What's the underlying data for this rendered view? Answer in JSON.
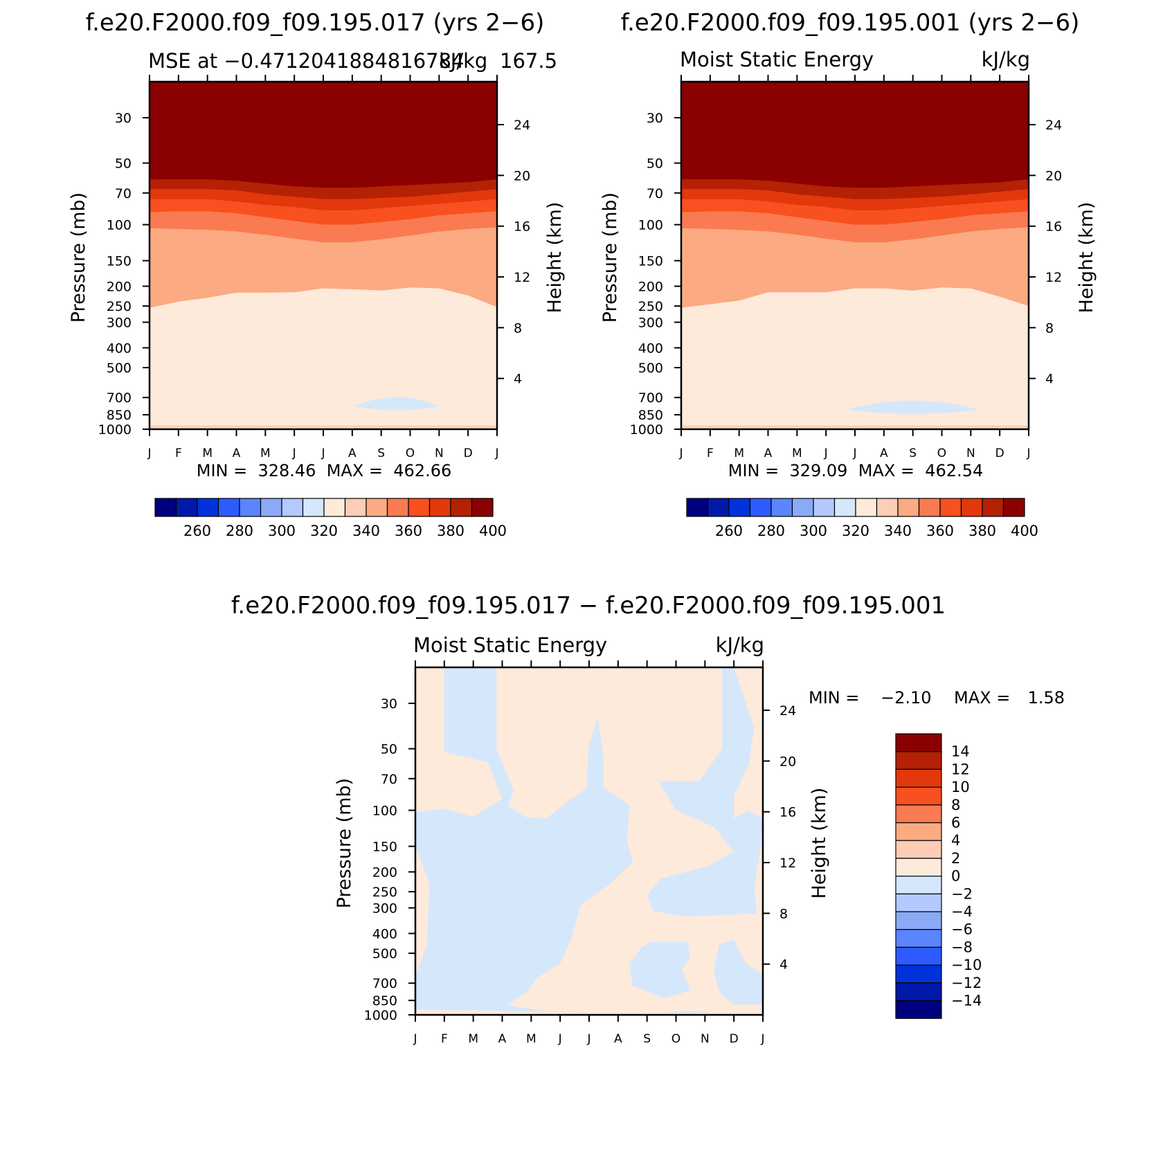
{
  "figure": {
    "panel_a_title": "f.e20.F2000.f09_f09.195.017 (yrs 2−6)",
    "panel_b_title": "f.e20.F2000.f09_f09.195.001 (yrs 2−6)",
    "panel_c_title": "f.e20.F2000.f09_f09.195.017 − f.e20.F2000.f09_f09.195.001"
  },
  "chart_data": [
    {
      "id": "a",
      "type": "heatmap",
      "description_kind": "contour (month vs pressure)",
      "title_left": "MSE at −0.4712041884816784",
      "title_right": "kJ/kg",
      "title_right_extra": "167.5",
      "ylabel": "Pressure (mb)",
      "ylabel_right": "Height (km)",
      "x_ticks": [
        "J",
        "F",
        "M",
        "A",
        "M",
        "J",
        "J",
        "A",
        "S",
        "O",
        "N",
        "D",
        "J"
      ],
      "y_ticks": [
        30,
        50,
        70,
        100,
        150,
        200,
        250,
        300,
        400,
        500,
        700,
        850,
        1000
      ],
      "y_ticks_right": [
        24,
        20,
        16,
        12,
        8,
        4
      ],
      "y_scale": "log",
      "ylim": [
        1000,
        20
      ],
      "stats": "MIN =  328.46  MAX =  462.66",
      "colorbar_labels": [
        "260",
        "280",
        "300",
        "320",
        "340",
        "360",
        "380",
        "400"
      ],
      "contour_levels": [
        250,
        260,
        270,
        280,
        290,
        300,
        310,
        320,
        330,
        340,
        350,
        360,
        370,
        380,
        390,
        400,
        410
      ],
      "boundaries": {
        "x": [
          0,
          1,
          2,
          3,
          4,
          5,
          6,
          7,
          8,
          9,
          10,
          11,
          12
        ],
        "p_390": [
          60,
          60,
          60,
          61,
          63,
          65,
          66,
          66,
          65,
          64,
          63,
          62,
          60
        ],
        "p_380": [
          67,
          67,
          67,
          68,
          71,
          73,
          75,
          75,
          74,
          73,
          71,
          69,
          67
        ],
        "p_370": [
          75,
          75,
          75,
          77,
          80,
          82,
          85,
          85,
          83,
          81,
          79,
          77,
          75
        ],
        "p_360": [
          87,
          86,
          86,
          88,
          92,
          96,
          100,
          100,
          97,
          94,
          90,
          88,
          86
        ],
        "p_350": [
          104,
          105,
          106,
          108,
          112,
          117,
          122,
          122,
          118,
          113,
          108,
          105,
          103
        ],
        "p_340": [
          255,
          238,
          228,
          215,
          215,
          214,
          205,
          207,
          210,
          203,
          205,
          222,
          253
        ],
        "blob_330": {
          "x_from": 7.1,
          "x_to": 10.0,
          "p_center": 760
        }
      }
    },
    {
      "id": "b",
      "type": "heatmap",
      "description_kind": "contour (month vs pressure)",
      "title_left": "Moist Static Energy",
      "title_right": "kJ/kg",
      "ylabel": "Pressure (mb)",
      "ylabel_right": "Height (km)",
      "x_ticks": [
        "J",
        "F",
        "M",
        "A",
        "M",
        "J",
        "J",
        "A",
        "S",
        "O",
        "N",
        "D",
        "J"
      ],
      "y_ticks": [
        30,
        50,
        70,
        100,
        150,
        200,
        250,
        300,
        400,
        500,
        700,
        850,
        1000
      ],
      "y_ticks_right": [
        24,
        20,
        16,
        12,
        8,
        4
      ],
      "y_scale": "log",
      "ylim": [
        1000,
        20
      ],
      "stats": "MIN =  329.09  MAX =  462.54",
      "colorbar_labels": [
        "260",
        "280",
        "300",
        "320",
        "340",
        "360",
        "380",
        "400"
      ],
      "boundaries": {
        "x": [
          0,
          1,
          2,
          3,
          4,
          5,
          6,
          7,
          8,
          9,
          10,
          11,
          12
        ],
        "p_390": [
          60,
          60,
          60,
          61,
          63,
          65,
          66,
          66,
          65,
          64,
          63,
          62,
          60
        ],
        "p_380": [
          67,
          67,
          67,
          68,
          71,
          73,
          75,
          75,
          74,
          73,
          71,
          69,
          67
        ],
        "p_370": [
          75,
          75,
          75,
          77,
          80,
          82,
          85,
          85,
          83,
          81,
          79,
          77,
          75
        ],
        "p_360": [
          87,
          86,
          86,
          88,
          92,
          96,
          100,
          100,
          97,
          94,
          90,
          88,
          86
        ],
        "p_350": [
          104,
          105,
          106,
          108,
          112,
          117,
          122,
          122,
          118,
          113,
          108,
          105,
          103
        ],
        "p_340": [
          255,
          245,
          235,
          214,
          214,
          214,
          205,
          205,
          210,
          203,
          205,
          225,
          250
        ],
        "blob_330": {
          "x_from": 5.7,
          "x_to": 10.3,
          "p_center": 790
        }
      }
    },
    {
      "id": "c",
      "type": "heatmap",
      "description_kind": "difference contour (month vs pressure)",
      "title_left": "Moist Static Energy",
      "title_right": "kJ/kg",
      "ylabel": "Pressure (mb)",
      "ylabel_right": "Height (km)",
      "x_ticks": [
        "J",
        "F",
        "M",
        "A",
        "M",
        "J",
        "J",
        "A",
        "S",
        "O",
        "N",
        "D",
        "J"
      ],
      "y_ticks": [
        30,
        50,
        70,
        100,
        150,
        200,
        250,
        300,
        400,
        500,
        700,
        850,
        1000
      ],
      "y_ticks_right": [
        24,
        20,
        16,
        12,
        8,
        4
      ],
      "y_scale": "log",
      "ylim": [
        1000,
        20
      ],
      "stats_min_label": "MIN =",
      "stats_min": "−2.10",
      "stats_max_label": "MAX =",
      "stats_max": "1.58",
      "colorbar_labels": [
        "14",
        "12",
        "10",
        "8",
        "6",
        "4",
        "2",
        "0",
        "−2",
        "−4",
        "−6",
        "−8",
        "−10",
        "−12",
        "−14"
      ],
      "contour_levels": [
        -16,
        -14,
        -12,
        -10,
        -8,
        -6,
        -4,
        -2,
        0,
        2,
        4,
        6,
        8,
        10,
        12,
        14,
        16
      ],
      "sign_regions": [
        {
          "sign": "negative",
          "range": "-2 to 0",
          "note": "blue area: Feb-Apr upper levels, Jan-Sep mid/lower levels, Sep-Jan column"
        },
        {
          "sign": "positive",
          "range": "0 to 2",
          "note": "remaining area"
        }
      ]
    }
  ],
  "palettes": {
    "mse": [
      "#00007f",
      "#0019aa",
      "#0033d9",
      "#2e5bff",
      "#5a85ff",
      "#8aaaf6",
      "#b3c9ff",
      "#d5e7fb",
      "#fdeadb",
      "#fdcdb5",
      "#fbaa82",
      "#fa7b51",
      "#f8501f",
      "#e2380b",
      "#b42104",
      "#8b0000"
    ],
    "diff": [
      "#00007f",
      "#0019aa",
      "#0033d9",
      "#2e5bff",
      "#5a85ff",
      "#8aaaf6",
      "#b3c9ff",
      "#d5e7fb",
      "#fdeadb",
      "#fdcdb5",
      "#fbaa82",
      "#fa7b51",
      "#f8501f",
      "#e2380b",
      "#b42104",
      "#8b0000"
    ]
  }
}
